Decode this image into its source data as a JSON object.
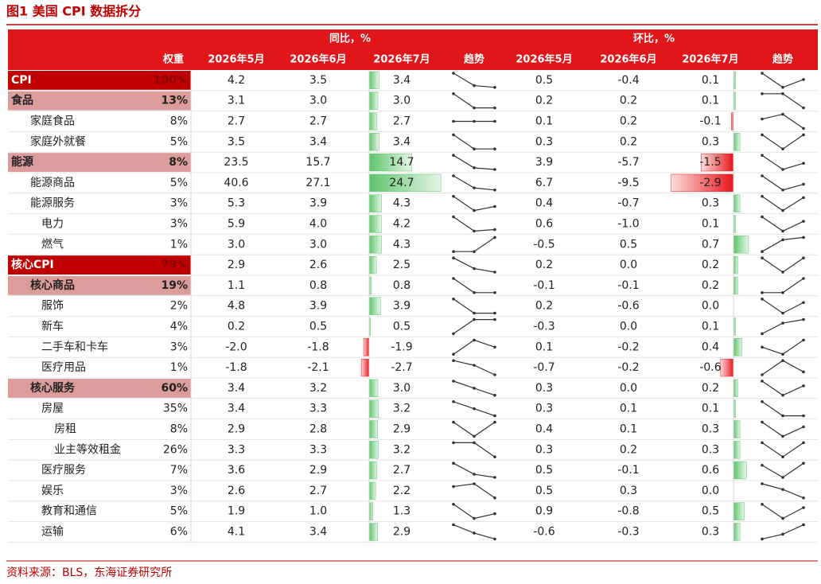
{
  "header": {
    "title": "图1 美国 CPI 数据拆分"
  },
  "table": {
    "group_yoy": "同比，%",
    "group_mom": "环比，%",
    "columns": [
      "权重",
      "2026年5月",
      "2026年6月",
      "2026年7月",
      "趋势",
      "2026年5月",
      "2026年6月",
      "2026年7月",
      "趋势"
    ],
    "rows": [
      {
        "name": "CPI",
        "level": 0,
        "style": "major",
        "weight": "100%",
        "yoy": [
          "4.2",
          "3.5",
          "3.4"
        ],
        "mom": [
          "0.5",
          "-0.4",
          "0.1"
        ]
      },
      {
        "name": "食品",
        "level": 0,
        "style": "minor",
        "weight": "13%",
        "yoy": [
          "3.1",
          "3.0",
          "3.0"
        ],
        "mom": [
          "0.2",
          "0.2",
          "0.1"
        ]
      },
      {
        "name": "家庭食品",
        "level": 1,
        "weight": "8%",
        "yoy": [
          "2.7",
          "2.7",
          "2.7"
        ],
        "mom": [
          "0.1",
          "0.2",
          "-0.1"
        ]
      },
      {
        "name": "家庭外就餐",
        "level": 1,
        "weight": "5%",
        "yoy": [
          "3.5",
          "3.4",
          "3.4"
        ],
        "mom": [
          "0.3",
          "0.2",
          "0.3"
        ]
      },
      {
        "name": "能源",
        "level": 0,
        "style": "minor",
        "weight": "8%",
        "yoy": [
          "23.5",
          "15.7",
          "14.7"
        ],
        "mom": [
          "3.9",
          "-5.7",
          "-1.5"
        ]
      },
      {
        "name": "能源商品",
        "level": 1,
        "weight": "5%",
        "yoy": [
          "40.6",
          "27.1",
          "24.7"
        ],
        "mom": [
          "6.7",
          "-9.5",
          "-2.9"
        ]
      },
      {
        "name": "能源服务",
        "level": 1,
        "weight": "3%",
        "yoy": [
          "5.3",
          "3.9",
          "4.3"
        ],
        "mom": [
          "0.4",
          "-0.7",
          "0.3"
        ]
      },
      {
        "name": "电力",
        "level": 2,
        "weight": "3%",
        "yoy": [
          "5.9",
          "4.0",
          "4.2"
        ],
        "mom": [
          "0.6",
          "-1.0",
          "0.1"
        ]
      },
      {
        "name": "燃气",
        "level": 2,
        "weight": "1%",
        "yoy": [
          "3.0",
          "3.0",
          "4.3"
        ],
        "mom": [
          "-0.5",
          "0.5",
          "0.7"
        ]
      },
      {
        "name": "核心CPI",
        "level": 0,
        "style": "major",
        "weight": "79%",
        "yoy": [
          "2.9",
          "2.6",
          "2.5"
        ],
        "mom": [
          "0.2",
          "0.0",
          "0.2"
        ]
      },
      {
        "name": "核心商品",
        "level": 1,
        "style": "minor",
        "weight": "19%",
        "yoy": [
          "1.1",
          "0.8",
          "0.8"
        ],
        "mom": [
          "-0.1",
          "-0.1",
          "0.2"
        ]
      },
      {
        "name": "服饰",
        "level": 2,
        "weight": "2%",
        "yoy": [
          "4.8",
          "3.9",
          "3.9"
        ],
        "mom": [
          "0.2",
          "-0.6",
          "0.0"
        ]
      },
      {
        "name": "新车",
        "level": 2,
        "weight": "4%",
        "yoy": [
          "0.2",
          "0.5",
          "0.5"
        ],
        "mom": [
          "-0.3",
          "0.0",
          "0.1"
        ]
      },
      {
        "name": "二手车和卡车",
        "level": 2,
        "weight": "3%",
        "yoy": [
          "-2.0",
          "-1.8",
          "-1.9"
        ],
        "mom": [
          "0.1",
          "-0.2",
          "0.4"
        ]
      },
      {
        "name": "医疗用品",
        "level": 2,
        "weight": "1%",
        "yoy": [
          "-1.8",
          "-2.1",
          "-2.7"
        ],
        "mom": [
          "-0.7",
          "-0.2",
          "-0.6"
        ]
      },
      {
        "name": "核心服务",
        "level": 1,
        "style": "minor",
        "weight": "60%",
        "yoy": [
          "3.4",
          "3.2",
          "3.0"
        ],
        "mom": [
          "0.3",
          "0.0",
          "0.2"
        ]
      },
      {
        "name": "房屋",
        "level": 2,
        "weight": "35%",
        "yoy": [
          "3.4",
          "3.3",
          "3.2"
        ],
        "mom": [
          "0.3",
          "0.1",
          "0.1"
        ]
      },
      {
        "name": "房租",
        "level": 3,
        "weight": "8%",
        "yoy": [
          "2.9",
          "2.8",
          "2.9"
        ],
        "mom": [
          "0.4",
          "0.1",
          "0.3"
        ]
      },
      {
        "name": "业主等效租金",
        "level": 3,
        "weight": "26%",
        "yoy": [
          "3.3",
          "3.3",
          "3.2"
        ],
        "mom": [
          "0.3",
          "0.2",
          "0.3"
        ]
      },
      {
        "name": "医疗服务",
        "level": 2,
        "weight": "7%",
        "yoy": [
          "3.6",
          "2.9",
          "2.7"
        ],
        "mom": [
          "0.5",
          "-0.1",
          "0.6"
        ]
      },
      {
        "name": "娱乐",
        "level": 2,
        "weight": "3%",
        "yoy": [
          "2.6",
          "2.7",
          "2.2"
        ],
        "mom": [
          "0.5",
          "0.3",
          "0.0"
        ]
      },
      {
        "name": "教育和通信",
        "level": 2,
        "weight": "5%",
        "yoy": [
          "1.9",
          "1.0",
          "1.3"
        ],
        "mom": [
          "0.9",
          "-0.8",
          "0.5"
        ]
      },
      {
        "name": "运输",
        "level": 2,
        "weight": "6%",
        "yoy": [
          "4.1",
          "3.4",
          "2.9"
        ],
        "mom": [
          "-0.6",
          "-0.3",
          "0.3"
        ]
      }
    ]
  },
  "footer": {
    "source": "资料来源：BLS，东海证券研究所"
  }
}
